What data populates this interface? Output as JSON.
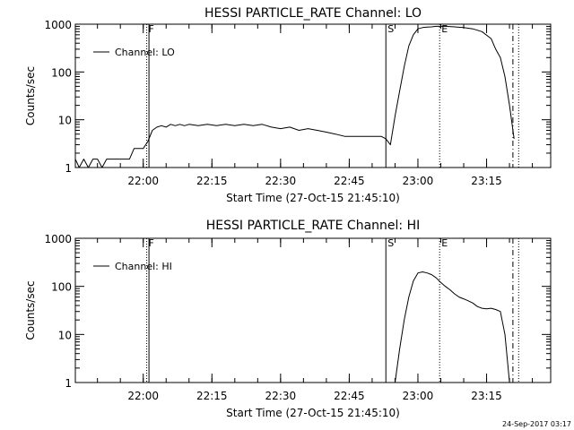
{
  "footer": {
    "timestamp": "24-Sep-2017 03:17"
  },
  "chart_data": [
    {
      "type": "line",
      "title": "HESSI PARTICLE_RATE Channel: LO",
      "xlabel": "Start Time (27-Oct-15 21:45:10)",
      "ylabel": "Counts/sec",
      "y_scale": "log",
      "ylim": [
        1,
        1000
      ],
      "xlim": [
        "21:45:10",
        "23:29:00"
      ],
      "x_ticks": [
        "22:00",
        "22:15",
        "22:30",
        "22:45",
        "23:00",
        "23:15"
      ],
      "y_ticks": [
        "1",
        "10",
        "100",
        "1000"
      ],
      "legend": {
        "position": "top-left",
        "entries": [
          "Channel: LO"
        ]
      },
      "markers": [
        {
          "label": "F",
          "time": "22:00:45",
          "style": "dotted"
        },
        {
          "label": "",
          "time": "22:01:15",
          "style": "solid"
        },
        {
          "label": "S",
          "time": "22:53:00",
          "style": "solid"
        },
        {
          "label": "E",
          "time": "23:04:45",
          "style": "dotted"
        },
        {
          "label": "",
          "time": "23:20:45",
          "style": "dashdot"
        },
        {
          "label": "",
          "time": "23:22:00",
          "style": "dotted"
        }
      ],
      "series": [
        {
          "name": "Channel: LO",
          "x": [
            "21:45:10",
            "21:46:00",
            "21:47:00",
            "21:48:00",
            "21:49:00",
            "21:50:00",
            "21:51:00",
            "21:52:00",
            "21:53:00",
            "21:54:00",
            "21:55:00",
            "21:56:00",
            "21:57:00",
            "21:58:00",
            "21:59:00",
            "22:00:00",
            "22:01:00",
            "22:02:00",
            "22:03:00",
            "22:04:00",
            "22:05:00",
            "22:06:00",
            "22:07:00",
            "22:08:00",
            "22:09:00",
            "22:10:00",
            "22:12:00",
            "22:14:00",
            "22:16:00",
            "22:18:00",
            "22:20:00",
            "22:22:00",
            "22:24:00",
            "22:26:00",
            "22:28:00",
            "22:30:00",
            "22:32:00",
            "22:34:00",
            "22:36:00",
            "22:38:00",
            "22:40:00",
            "22:42:00",
            "22:44:00",
            "22:46:00",
            "22:48:00",
            "22:50:00",
            "22:52:00",
            "22:53:00",
            "22:54:00",
            "22:55:00",
            "22:56:00",
            "22:57:00",
            "22:58:00",
            "22:59:00",
            "23:00:00",
            "23:01:00",
            "23:02:00",
            "23:03:00",
            "23:04:00",
            "23:06:00",
            "23:08:00",
            "23:10:00",
            "23:12:00",
            "23:14:00",
            "23:16:00",
            "23:17:00",
            "23:18:00",
            "23:19:00",
            "23:20:00",
            "23:21:00"
          ],
          "values": [
            1.5,
            1,
            1.5,
            1,
            1.5,
            1.5,
            1,
            1.5,
            1.5,
            1.5,
            1.5,
            1.5,
            1.5,
            2.5,
            2.5,
            2.5,
            3.5,
            6,
            7,
            7.5,
            7,
            8,
            7.5,
            8,
            7.5,
            8,
            7.5,
            8,
            7.5,
            8,
            7.5,
            8,
            7.5,
            8,
            7,
            6.5,
            7,
            6,
            6.5,
            6,
            5.5,
            5,
            4.5,
            4.5,
            4.5,
            4.5,
            4.5,
            4,
            3,
            12,
            40,
            130,
            350,
            600,
            800,
            850,
            870,
            880,
            900,
            900,
            880,
            850,
            800,
            700,
            500,
            300,
            200,
            80,
            20,
            4
          ]
        }
      ]
    },
    {
      "type": "line",
      "title": "HESSI PARTICLE_RATE Channel: HI",
      "xlabel": "Start Time (27-Oct-15 21:45:10)",
      "ylabel": "Counts/sec",
      "y_scale": "log",
      "ylim": [
        1,
        1000
      ],
      "xlim": [
        "21:45:10",
        "23:29:00"
      ],
      "x_ticks": [
        "22:00",
        "22:15",
        "22:30",
        "22:45",
        "23:00",
        "23:15"
      ],
      "y_ticks": [
        "1",
        "10",
        "100",
        "1000"
      ],
      "legend": {
        "position": "top-left",
        "entries": [
          "Channel: HI"
        ]
      },
      "markers": [
        {
          "label": "F",
          "time": "22:00:45",
          "style": "dotted"
        },
        {
          "label": "",
          "time": "22:01:15",
          "style": "solid"
        },
        {
          "label": "S",
          "time": "22:53:00",
          "style": "solid"
        },
        {
          "label": "E",
          "time": "23:04:45",
          "style": "dotted"
        },
        {
          "label": "",
          "time": "23:20:45",
          "style": "dashdot"
        },
        {
          "label": "",
          "time": "23:22:00",
          "style": "dotted"
        }
      ],
      "series": [
        {
          "name": "Channel: HI",
          "x": [
            "22:55:00",
            "22:56:00",
            "22:57:00",
            "22:58:00",
            "22:59:00",
            "23:00:00",
            "23:01:00",
            "23:02:00",
            "23:03:00",
            "23:04:00",
            "23:05:00",
            "23:06:00",
            "23:07:00",
            "23:08:00",
            "23:09:00",
            "23:10:00",
            "23:11:00",
            "23:12:00",
            "23:13:00",
            "23:14:00",
            "23:15:00",
            "23:16:00",
            "23:17:00",
            "23:18:00",
            "23:19:00",
            "23:20:00"
          ],
          "values": [
            1,
            5,
            20,
            60,
            130,
            190,
            200,
            190,
            175,
            150,
            120,
            100,
            85,
            70,
            60,
            55,
            50,
            45,
            38,
            35,
            34,
            35,
            33,
            30,
            10,
            1
          ]
        }
      ]
    }
  ]
}
